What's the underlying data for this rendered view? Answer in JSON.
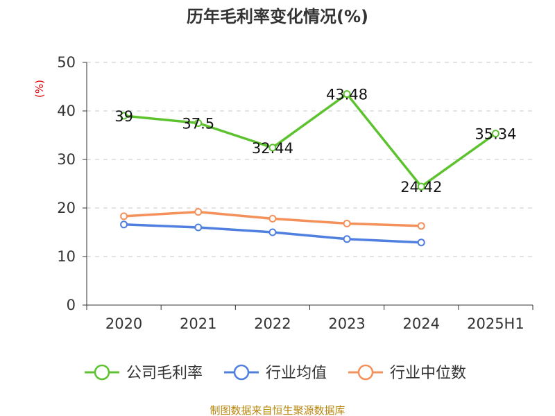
{
  "title": "历年毛利率变化情况(%)",
  "source": "制图数据来自恒生聚源数据库",
  "colors": {
    "company": "#5cc22e",
    "industry_avg": "#4f7fdf",
    "industry_median": "#f4915a",
    "unit_label": "#e00000",
    "source_text": "#b8860b"
  },
  "chart_data": {
    "type": "line",
    "title": "历年毛利率变化情况(%)",
    "categories": [
      "2020",
      "2021",
      "2022",
      "2023",
      "2024",
      "2025H1"
    ],
    "y_unit": "(%)",
    "ylim": [
      0,
      50
    ],
    "y_ticks": [
      0,
      10,
      20,
      30,
      40,
      50
    ],
    "grid": true,
    "legend_position": "bottom",
    "series": [
      {
        "name": "公司毛利率",
        "color": "#5cc22e",
        "values": [
          39,
          37.5,
          32.44,
          43.48,
          24.42,
          35.34
        ],
        "labels": [
          "39",
          "37.5",
          "32.44",
          "43.48",
          "24.42",
          "35.34"
        ],
        "show_labels": true
      },
      {
        "name": "行业均值",
        "color": "#4f7fdf",
        "values": [
          16.6,
          16.0,
          15.0,
          13.6,
          12.9,
          null
        ],
        "show_labels": false
      },
      {
        "name": "行业中位数",
        "color": "#f4915a",
        "values": [
          18.3,
          19.2,
          17.8,
          16.8,
          16.3,
          null
        ],
        "show_labels": false
      }
    ]
  }
}
